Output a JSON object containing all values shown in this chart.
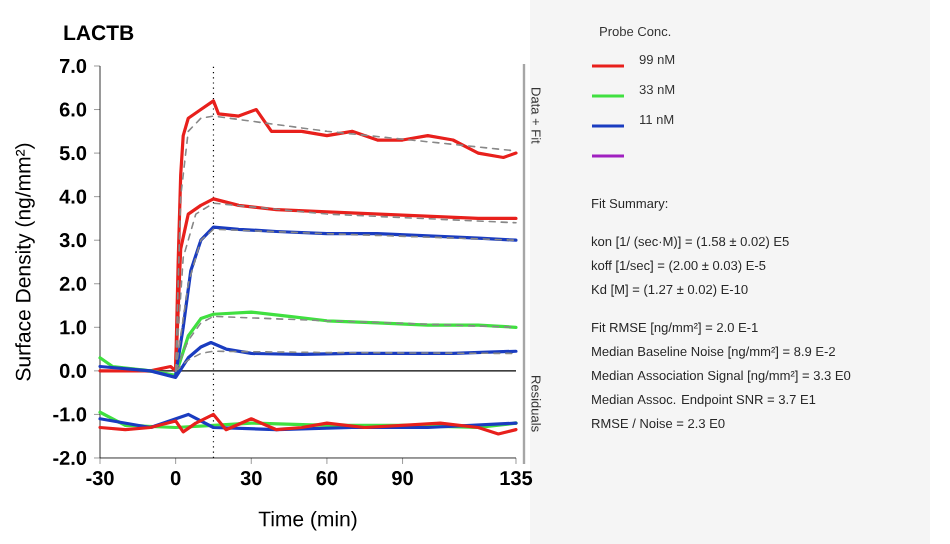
{
  "chart_data": {
    "type": "line",
    "title": "LACTB",
    "xlabel": "Time (min)",
    "ylabel": "Surface Density (ng/mm²)",
    "legend_title": "Probe Conc.",
    "xlim": [
      -30,
      135
    ],
    "xticks": [
      -30,
      0,
      30,
      60,
      90,
      135
    ],
    "ylim": [
      -2,
      7
    ],
    "yticks": [
      {
        "value": -2,
        "label": "-2.0"
      },
      {
        "value": -1,
        "label": "-1.0"
      },
      {
        "value": 0,
        "label": "0.0"
      },
      {
        "value": 1,
        "label": "1.0"
      },
      {
        "value": 2,
        "label": "2.0"
      },
      {
        "value": 3,
        "label": "3.0"
      },
      {
        "value": 4,
        "label": "4.0"
      },
      {
        "value": 5,
        "label": "5.0"
      },
      {
        "value": 6,
        "label": "6.0"
      },
      {
        "value": 7,
        "label": "7.0"
      }
    ],
    "grid": false,
    "legend": "right",
    "marker": "none",
    "series": [
      {
        "name": "99 nM",
        "color": "#e8201c",
        "line_style": "solid",
        "x": [
          -30,
          -10,
          -2,
          0,
          1,
          2,
          3,
          5,
          10,
          15,
          17,
          25,
          32,
          38,
          50,
          60,
          70,
          80,
          90,
          100,
          110,
          120,
          130,
          135
        ],
        "values": [
          0.0,
          0.0,
          0.1,
          0.0,
          2.5,
          4.5,
          5.4,
          5.8,
          6.0,
          6.2,
          5.9,
          5.85,
          6.0,
          5.5,
          5.5,
          5.4,
          5.5,
          5.3,
          5.3,
          5.4,
          5.3,
          5.0,
          4.9,
          5.0
        ]
      },
      {
        "name": "33 nM",
        "color": "#40e040",
        "line_style": "solid",
        "x": [
          -30,
          -25,
          -10,
          0,
          5,
          10,
          15,
          30,
          45,
          60,
          80,
          100,
          120,
          135
        ],
        "values": [
          0.3,
          0.1,
          0.0,
          -0.1,
          0.8,
          1.2,
          1.3,
          1.35,
          1.25,
          1.15,
          1.1,
          1.05,
          1.05,
          1.0
        ]
      },
      {
        "name": "11 nM",
        "color": "#1a3cc0",
        "line_style": "solid",
        "x": [
          -30,
          -10,
          0,
          5,
          10,
          14,
          20,
          30,
          50,
          70,
          90,
          110,
          135
        ],
        "values": [
          0.1,
          0.0,
          -0.15,
          0.3,
          0.55,
          0.65,
          0.5,
          0.4,
          0.38,
          0.4,
          0.4,
          0.4,
          0.45
        ]
      },
      {
        "color": "#a020c0"
      },
      {
        "color": "#e8201c",
        "line_style": "solid",
        "x": [
          0,
          2,
          5,
          10,
          15,
          25,
          40,
          60,
          80,
          100,
          120,
          135
        ],
        "values": [
          0.0,
          2.8,
          3.6,
          3.8,
          3.95,
          3.8,
          3.7,
          3.65,
          3.6,
          3.55,
          3.5,
          3.5
        ]
      },
      {
        "color": "#1a3cc0",
        "line_style": "solid",
        "x": [
          0,
          3,
          6,
          10,
          15,
          25,
          40,
          60,
          80,
          100,
          120,
          135
        ],
        "values": [
          -0.1,
          1.0,
          2.3,
          3.0,
          3.3,
          3.25,
          3.2,
          3.15,
          3.15,
          3.1,
          3.05,
          3.0
        ]
      },
      {
        "color": "#888888",
        "line_style": "dashed",
        "x": [
          0,
          2,
          5,
          10,
          15,
          60,
          135
        ],
        "values": [
          0.0,
          4.0,
          5.5,
          5.8,
          5.85,
          5.5,
          5.05
        ]
      },
      {
        "color": "#888888",
        "line_style": "dashed",
        "x": [
          0,
          3,
          8,
          15,
          60,
          135
        ],
        "values": [
          0.0,
          2.6,
          3.6,
          3.85,
          3.6,
          3.4
        ]
      },
      {
        "color": "#888888",
        "line_style": "dashed",
        "x": [
          0,
          5,
          10,
          15,
          60,
          135
        ],
        "values": [
          0.0,
          2.0,
          3.0,
          3.25,
          3.15,
          3.0
        ]
      },
      {
        "color": "#888888",
        "line_style": "dashed",
        "x": [
          0,
          5,
          10,
          15,
          60,
          135
        ],
        "values": [
          0.0,
          0.7,
          1.1,
          1.25,
          1.15,
          1.0
        ]
      },
      {
        "color": "#888888",
        "line_style": "dashed",
        "x": [
          0,
          5,
          10,
          15,
          60,
          135
        ],
        "values": [
          0.0,
          0.25,
          0.4,
          0.45,
          0.42,
          0.4
        ]
      },
      {
        "color": "#40e040",
        "line_style": "solid",
        "x": [
          -30,
          -20,
          0,
          15,
          30,
          60,
          90,
          120,
          135
        ],
        "values": [
          -0.95,
          -1.25,
          -1.3,
          -1.25,
          -1.2,
          -1.25,
          -1.25,
          -1.3,
          -1.2
        ]
      },
      {
        "color": "#1a3cc0",
        "line_style": "solid",
        "x": [
          -30,
          -10,
          5,
          15,
          40,
          70,
          100,
          135
        ],
        "values": [
          -1.1,
          -1.3,
          -1.0,
          -1.3,
          -1.35,
          -1.3,
          -1.3,
          -1.2
        ]
      },
      {
        "color": "#e8201c",
        "line_style": "solid",
        "x": [
          -30,
          -20,
          -10,
          0,
          3,
          8,
          15,
          20,
          30,
          40,
          50,
          60,
          75,
          90,
          105,
          120,
          128,
          135
        ],
        "values": [
          -1.3,
          -1.35,
          -1.3,
          -1.15,
          -1.4,
          -1.2,
          -1.0,
          -1.35,
          -1.1,
          -1.35,
          -1.3,
          -1.2,
          -1.3,
          -1.25,
          -1.2,
          -1.3,
          -1.45,
          -1.35
        ]
      }
    ],
    "ref_lines": [
      {
        "axis": "x",
        "value": 15,
        "line_style": "dotted",
        "color": "#000000"
      },
      {
        "axis": "y",
        "value": 0,
        "line_style": "solid",
        "color": "#000000"
      }
    ],
    "annotations": [
      "Data + Fit",
      "Residuals",
      "Fit Summary:",
      "kon  [1/ (sec·M)]  =  (1.58 ± 0.02) E5",
      "koff  [1/sec]  =  (2.00 ± 0.03) E-5",
      "Kd  [M]  =  (1.27 ± 0.02) E-10",
      "Fit RMSE [ng/mm²]  =  2.0 E-1",
      "Median Baseline Noise [ng/mm²]  =  8.9 E-2",
      "Median Association Signal [ng/mm²]  =  3.3 E0",
      "Median Assoc. Endpoint SNR  =  3.7 E1",
      "RMSE / Noise  =  2.3 E0"
    ]
  }
}
